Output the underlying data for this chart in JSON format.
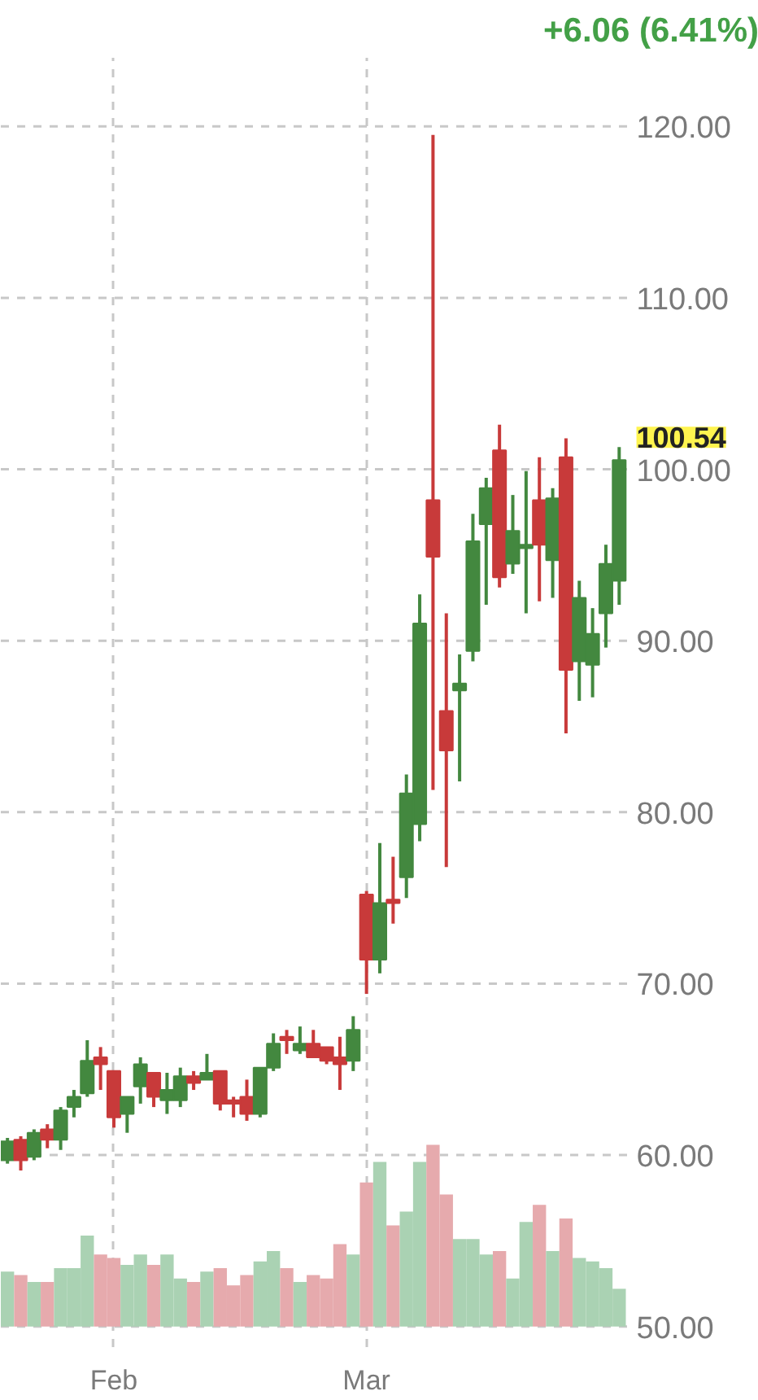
{
  "chart_data": {
    "type": "candlestick",
    "title": "+6.06 (6.41%)",
    "categories": [
      null,
      null,
      null,
      null,
      null,
      null,
      null,
      null,
      "Feb",
      null,
      null,
      null,
      null,
      null,
      null,
      null,
      null,
      null,
      null,
      null,
      null,
      null,
      null,
      null,
      null,
      null,
      null,
      "Mar",
      null,
      null,
      null,
      null,
      null,
      null,
      null,
      null,
      null,
      null,
      null,
      null,
      null,
      null,
      null,
      null,
      null,
      null,
      null
    ],
    "series": [
      {
        "ohlc": [
          [
            59.7,
            61.0,
            59.5,
            60.8
          ],
          [
            60.9,
            61.1,
            59.1,
            59.7
          ],
          [
            59.9,
            61.5,
            59.7,
            61.3
          ],
          [
            61.5,
            61.8,
            60.4,
            60.9
          ],
          [
            60.9,
            62.8,
            60.3,
            62.6
          ],
          [
            62.8,
            63.8,
            62.2,
            63.4
          ],
          [
            63.6,
            66.7,
            63.4,
            65.5
          ],
          [
            65.7,
            66.3,
            63.8,
            65.3
          ],
          [
            64.9,
            64.9,
            61.6,
            62.2
          ],
          [
            62.4,
            63.4,
            61.3,
            63.4
          ],
          [
            64.0,
            65.7,
            63.0,
            65.3
          ],
          [
            64.8,
            64.8,
            62.8,
            63.4
          ],
          [
            63.2,
            64.8,
            62.4,
            63.8
          ],
          [
            63.2,
            65.1,
            62.8,
            64.6
          ],
          [
            64.6,
            64.9,
            63.8,
            64.2
          ],
          [
            64.4,
            65.9,
            64.4,
            64.8
          ],
          [
            64.9,
            64.9,
            62.6,
            63.0
          ],
          [
            63.2,
            63.4,
            62.2,
            63.0
          ],
          [
            63.4,
            64.4,
            62.0,
            62.4
          ],
          [
            62.4,
            65.1,
            62.2,
            65.1
          ],
          [
            65.1,
            67.1,
            64.9,
            66.5
          ],
          [
            66.9,
            67.3,
            65.9,
            66.7
          ],
          [
            66.1,
            67.5,
            65.9,
            66.5
          ],
          [
            66.5,
            67.3,
            65.7,
            65.7
          ],
          [
            66.3,
            66.3,
            65.3,
            65.5
          ],
          [
            65.7,
            66.9,
            63.8,
            65.3
          ],
          [
            65.5,
            68.1,
            64.9,
            67.3
          ],
          [
            75.2,
            75.4,
            69.4,
            71.4
          ],
          [
            71.4,
            78.2,
            70.6,
            74.7
          ],
          [
            74.9,
            77.4,
            73.5,
            74.7
          ],
          [
            76.2,
            82.2,
            75.0,
            81.1
          ],
          [
            79.3,
            92.7,
            78.3,
            91.0
          ],
          [
            98.2,
            119.5,
            81.3,
            94.9
          ],
          [
            85.9,
            91.6,
            76.8,
            83.6
          ],
          [
            87.1,
            89.2,
            81.8,
            87.5
          ],
          [
            89.4,
            97.4,
            88.8,
            95.8
          ],
          [
            96.8,
            99.5,
            92.1,
            98.9
          ],
          [
            101.1,
            102.6,
            93.1,
            93.7
          ],
          [
            94.5,
            98.5,
            93.9,
            96.4
          ],
          [
            95.4,
            99.9,
            91.6,
            95.6
          ],
          [
            98.2,
            100.7,
            92.3,
            95.6
          ],
          [
            94.7,
            98.9,
            92.5,
            98.3
          ],
          [
            100.7,
            101.8,
            84.6,
            88.3
          ],
          [
            88.8,
            93.5,
            86.5,
            92.5
          ],
          [
            88.6,
            91.9,
            86.7,
            90.4
          ],
          [
            91.6,
            95.6,
            89.6,
            94.48
          ],
          [
            93.5,
            101.3,
            92.1,
            100.54
          ]
        ],
        "colors": [
          "#43883f",
          "#c83a3a",
          "#43883f",
          "#c83a3a",
          "#43883f",
          "#43883f",
          "#43883f",
          "#c83a3a",
          "#c83a3a",
          "#43883f",
          "#43883f",
          "#c83a3a",
          "#43883f",
          "#43883f",
          "#c83a3a",
          "#43883f",
          "#c83a3a",
          "#c83a3a",
          "#c83a3a",
          "#43883f",
          "#43883f",
          "#c83a3a",
          "#43883f",
          "#c83a3a",
          "#c83a3a",
          "#c83a3a",
          "#43883f",
          "#c83a3a",
          "#43883f",
          "#c83a3a",
          "#43883f",
          "#43883f",
          "#c83a3a",
          "#c83a3a",
          "#43883f",
          "#43883f",
          "#43883f",
          "#c83a3a",
          "#43883f",
          "#43883f",
          "#c83a3a",
          "#43883f",
          "#c83a3a",
          "#43883f",
          "#43883f",
          "#43883f",
          "#43883f"
        ]
      },
      {
        "type": "bar",
        "base": [
          50,
          50,
          50,
          50,
          50,
          50,
          50,
          50,
          50,
          50,
          50,
          50,
          50,
          50,
          50,
          50,
          50,
          50,
          50,
          50,
          50,
          50,
          50,
          50,
          50,
          50,
          50,
          50,
          50,
          50,
          50,
          50,
          50,
          50,
          50,
          50,
          50,
          50,
          50,
          50,
          50,
          50,
          50,
          50,
          50,
          50,
          50
        ],
        "values": [
          3.2,
          3.0,
          2.6,
          2.6,
          3.4,
          3.4,
          5.3,
          4.2,
          4.0,
          3.6,
          4.2,
          3.6,
          4.2,
          2.8,
          2.6,
          3.2,
          3.4,
          2.4,
          3.0,
          3.8,
          4.4,
          3.4,
          2.6,
          3.0,
          2.8,
          4.8,
          4.2,
          8.4,
          9.6,
          5.9,
          6.7,
          9.6,
          10.6,
          7.7,
          5.1,
          5.1,
          4.2,
          4.4,
          2.8,
          6.1,
          7.1,
          4.4,
          6.3,
          4.0,
          3.8,
          3.4,
          2.2
        ],
        "colors": [
          "#aad2b3",
          "#e6aaad",
          "#aad2b3",
          "#e6aaad",
          "#aad2b3",
          "#aad2b3",
          "#aad2b3",
          "#e6aaad",
          "#e6aaad",
          "#aad2b3",
          "#aad2b3",
          "#e6aaad",
          "#aad2b3",
          "#aad2b3",
          "#e6aaad",
          "#aad2b3",
          "#e6aaad",
          "#e6aaad",
          "#e6aaad",
          "#aad2b3",
          "#aad2b3",
          "#e6aaad",
          "#aad2b3",
          "#e6aaad",
          "#e6aaad",
          "#e6aaad",
          "#aad2b3",
          "#e6aaad",
          "#aad2b3",
          "#e6aaad",
          "#aad2b3",
          "#aad2b3",
          "#e6aaad",
          "#e6aaad",
          "#aad2b3",
          "#aad2b3",
          "#aad2b3",
          "#e6aaad",
          "#aad2b3",
          "#aad2b3",
          "#e6aaad",
          "#aad2b3",
          "#e6aaad",
          "#aad2b3",
          "#aad2b3",
          "#aad2b3",
          "#aad2b3"
        ]
      }
    ],
    "ylim": [
      48.8,
      124
    ],
    "yticks": [
      {
        "value": 50,
        "label": "50.00"
      },
      {
        "value": 60,
        "label": "60.00"
      },
      {
        "value": 70,
        "label": "70.00"
      },
      {
        "value": 80,
        "label": "80.00"
      },
      {
        "value": 90,
        "label": "90.00"
      },
      {
        "value": 100,
        "label": "100.00"
      },
      {
        "value": 110,
        "label": "110.00"
      },
      {
        "value": 120,
        "label": "120.00"
      }
    ],
    "grid": true,
    "annotations": [
      "100.54"
    ]
  }
}
